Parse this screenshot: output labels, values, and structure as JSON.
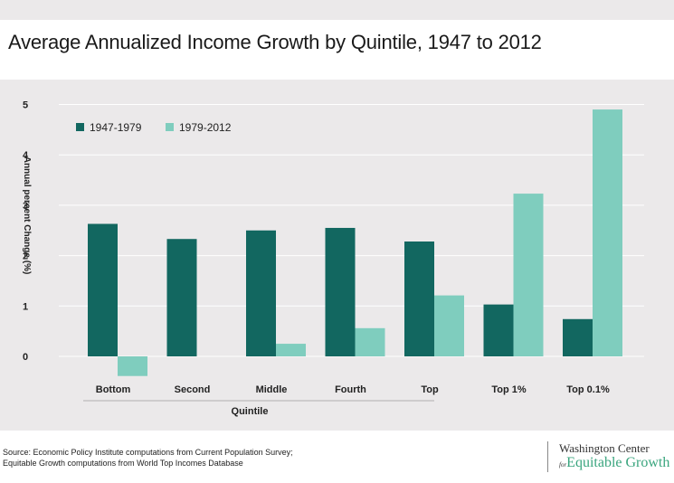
{
  "title": "Average Annualized Income Growth by Quintile, 1947 to 2012",
  "source_lines": [
    "Source: Economic Policy Institute computations from Current Population Survey;",
    "Equitable Growth computations from World Top Incomes Database"
  ],
  "logo": {
    "line1": "Washington Center",
    "for_text": "for",
    "line2": "Equitable Growth"
  },
  "colors": {
    "series1": "#126760",
    "series2": "#7fcdbe",
    "grid": "#ffffff",
    "background": "#ebe9ea"
  },
  "chart_data": {
    "type": "bar",
    "title": "Average Annualized Income Growth by Quintile, 1947 to 2012",
    "xlabel": "Quintile",
    "ylabel": "Annual percent Change (%)",
    "categories": [
      "Bottom",
      "Second",
      "Middle",
      "Fourth",
      "Top",
      "Top 1%",
      "Top 0.1%"
    ],
    "series": [
      {
        "name": "1947-1979",
        "values": [
          2.63,
          2.33,
          2.5,
          2.55,
          2.28,
          1.03,
          0.74
        ]
      },
      {
        "name": "1979-2012",
        "values": [
          -0.39,
          0.0,
          0.25,
          0.56,
          1.21,
          3.23,
          4.9
        ]
      }
    ],
    "ylim": [
      0,
      5
    ],
    "yticks": [
      "0",
      "1",
      "2",
      "3",
      "4",
      "5"
    ],
    "grid": true,
    "legend_position": "top-left"
  }
}
